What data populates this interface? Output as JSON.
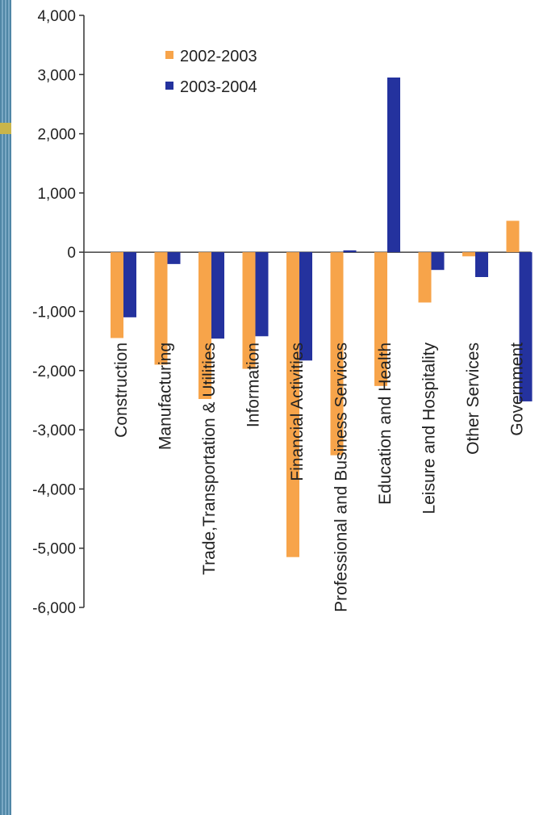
{
  "chart_data": {
    "type": "bar",
    "title": "",
    "xlabel": "",
    "ylabel": "",
    "ylim": [
      -6000,
      4000
    ],
    "yticks": [
      4000,
      3000,
      2000,
      1000,
      0,
      -1000,
      -2000,
      -3000,
      -4000,
      -5000,
      -6000
    ],
    "ytick_labels": [
      "4,000",
      "3,000",
      "2,000",
      "1,000",
      "0",
      "-1,000",
      "-2,000",
      "-3,000",
      "-4,000",
      "-5,000",
      "-6,000"
    ],
    "categories": [
      "Construction",
      "Manufacturing",
      "Trade,Transportation & Utilities",
      "Information",
      "Financial Activities",
      "Professional and Business Services",
      "Education and Health",
      "Leisure and Hospitality",
      "Other Services",
      "Government"
    ],
    "series": [
      {
        "name": "2002-2003",
        "color": "#f7a44a",
        "values": [
          -1450,
          -1900,
          -2480,
          -1970,
          -5150,
          -3430,
          -2260,
          -850,
          -70,
          530
        ]
      },
      {
        "name": "2003-2004",
        "color": "#24329e",
        "values": [
          -1100,
          -200,
          -1460,
          -1420,
          -1830,
          30,
          2950,
          -300,
          -420,
          -2520
        ]
      }
    ],
    "legend_position": "top-left",
    "grid": false
  }
}
